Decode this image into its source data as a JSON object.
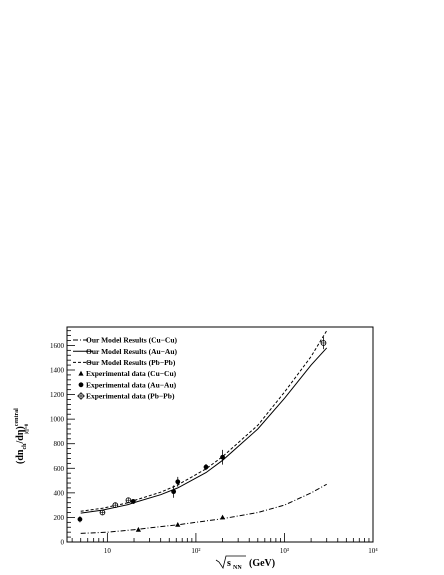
{
  "chart_data": {
    "type": "line",
    "x_scale": "log",
    "xlim": [
      3.5,
      10000
    ],
    "ylim": [
      0,
      1750
    ],
    "xlabel": "(GeV)",
    "xlabel_symbol": "s",
    "xlabel_subscript": "NN",
    "ylabel": "(dn",
    "ylabel_sub": "ch",
    "ylabel_rest": "/dη)",
    "ylabel_sup": "central",
    "ylabel_sub2": "|η|=0",
    "x_tick_labels": [
      "10",
      "10²",
      "10³",
      "10⁴"
    ],
    "x_tick_values": [
      10,
      100,
      1000,
      10000
    ],
    "y_tick_values": [
      0,
      200,
      400,
      600,
      800,
      1000,
      1200,
      1400,
      1600
    ],
    "legend_position": "top-left",
    "series": [
      {
        "name": "Our Model Results (Cu−Cu)",
        "style": "dashdot",
        "x": [
          5,
          10,
          20,
          40,
          62.4,
          100,
          200,
          500,
          1000,
          2000,
          3000
        ],
        "y": [
          70,
          80,
          100,
          125,
          140,
          160,
          190,
          240,
          300,
          400,
          470
        ]
      },
      {
        "name": "Our Model Results (Au−Au)",
        "style": "solid",
        "x": [
          5,
          8.8,
          17.3,
          19.6,
          40,
          62.4,
          130,
          200,
          500,
          1000,
          2000,
          3000
        ],
        "y": [
          235,
          260,
          305,
          318,
          385,
          440,
          565,
          665,
          920,
          1170,
          1440,
          1580
        ]
      },
      {
        "name": "Our Model Results (Pb−Pb)",
        "style": "dashed",
        "x": [
          5,
          8.8,
          17.3,
          19.6,
          40,
          62.4,
          130,
          200,
          500,
          1000,
          2000,
          3000
        ],
        "y": [
          250,
          275,
          320,
          335,
          405,
          465,
          595,
          695,
          950,
          1220,
          1510,
          1720
        ]
      },
      {
        "name": "Experimental data (Cu−Cu)",
        "marker": "triangle",
        "x": [
          22.4,
          62.4,
          200
        ],
        "y": [
          100,
          140,
          200
        ]
      },
      {
        "name": "Experimental data (Au−Au)",
        "marker": "circle-filled",
        "x": [
          4.9,
          19.6,
          56,
          62.4,
          130,
          200
        ],
        "y": [
          185,
          330,
          410,
          490,
          610,
          690
        ],
        "err": [
          25,
          20,
          50,
          40,
          25,
          60
        ]
      },
      {
        "name": "Experimental data (Pb−Pb)",
        "marker": "circle-open",
        "x": [
          8.8,
          12.3,
          17.3,
          2760
        ],
        "y": [
          240,
          300,
          340,
          1620
        ],
        "err": [
          10,
          10,
          12,
          50
        ]
      }
    ]
  }
}
